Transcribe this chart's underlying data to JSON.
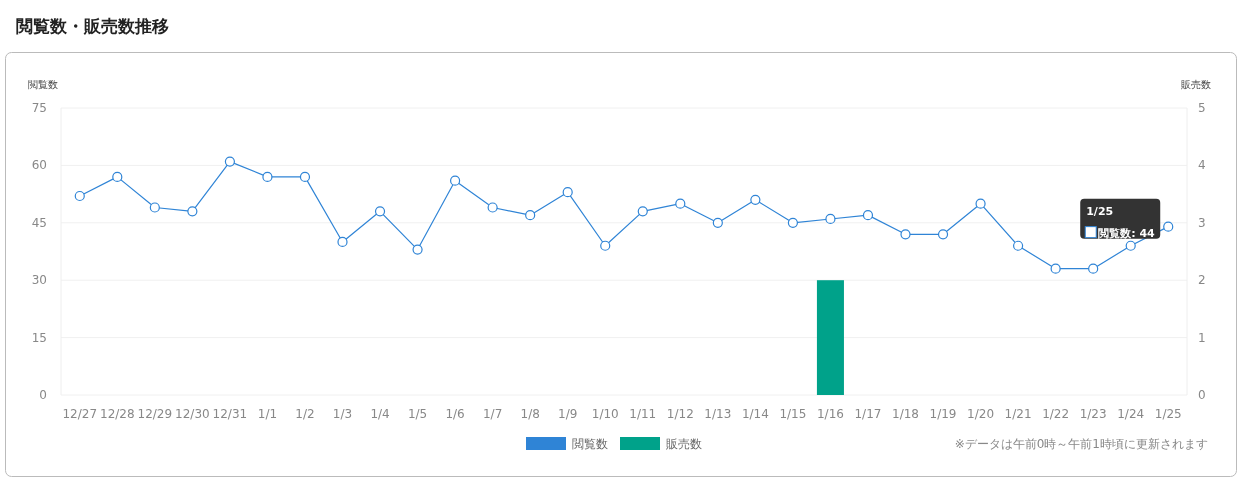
{
  "chart_data": {
    "type": "line",
    "title": "閲覧数・販売数推移",
    "ylabel": "閲覧数",
    "y2label": "販売数",
    "categories": [
      "12/27",
      "12/28",
      "12/29",
      "12/30",
      "12/31",
      "1/1",
      "1/2",
      "1/3",
      "1/4",
      "1/5",
      "1/6",
      "1/7",
      "1/8",
      "1/9",
      "1/10",
      "1/11",
      "1/12",
      "1/13",
      "1/14",
      "1/15",
      "1/16",
      "1/17",
      "1/18",
      "1/19",
      "1/20",
      "1/21",
      "1/22",
      "1/23",
      "1/24",
      "1/25"
    ],
    "series": [
      {
        "name": "閲覧数",
        "color": "#2f84d6",
        "values": [
          52,
          57,
          49,
          48,
          61,
          57,
          57,
          40,
          48,
          38,
          56,
          49,
          47,
          53,
          39,
          48,
          50,
          45,
          51,
          45,
          46,
          47,
          42,
          42,
          50,
          39,
          33,
          33,
          39,
          44
        ]
      },
      {
        "name": "販売数",
        "type": "bar",
        "axis": "y2",
        "color": "#00a28a",
        "values": [
          0,
          0,
          0,
          0,
          0,
          0,
          0,
          0,
          0,
          0,
          0,
          0,
          0,
          0,
          0,
          0,
          0,
          0,
          0,
          0,
          2,
          0,
          0,
          0,
          0,
          0,
          0,
          0,
          0,
          0
        ]
      }
    ],
    "ylim": [
      0,
      75
    ],
    "yticks": [
      0,
      15,
      30,
      45,
      60,
      75
    ],
    "y2lim": [
      0,
      5
    ],
    "y2ticks": [
      0,
      1,
      2,
      3,
      4,
      5
    ],
    "grid": "y",
    "marker": "circle",
    "legend": "bottom",
    "annotations": [
      "1/25",
      "閲覧数: 44",
      "※データは午前0時～午前1時頃に更新されます"
    ]
  }
}
